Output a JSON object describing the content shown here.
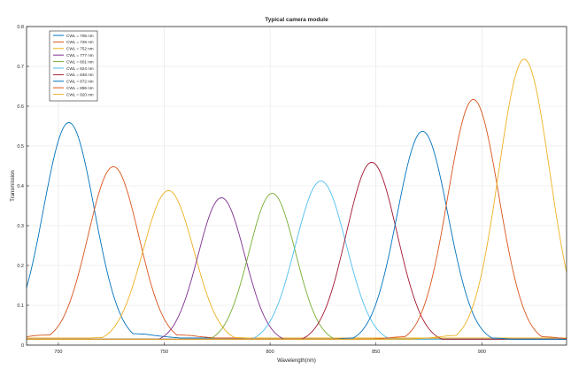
{
  "chart_data": {
    "type": "line",
    "title": "Typical camera module",
    "xlabel": "Wavelength(nm)",
    "ylabel": "Transmission",
    "xlim": [
      685,
      940
    ],
    "ylim": [
      0,
      0.8
    ],
    "xticks": [
      700,
      750,
      800,
      850,
      900
    ],
    "yticks": [
      0,
      0.1,
      0.2,
      0.3,
      0.4,
      0.5,
      0.6,
      0.7,
      0.8
    ],
    "grid": true,
    "legend_position": "top-left",
    "series": [
      {
        "name": "CWL = 705 nm",
        "color": "#0072BD",
        "cwl": 705,
        "peak": 0.553,
        "width": 12,
        "baseline": 0.012,
        "wing": 0.07
      },
      {
        "name": "CWL = 726 nm",
        "color": "#D95319",
        "cwl": 726,
        "peak": 0.442,
        "width": 12,
        "baseline": 0.012,
        "wing": 0.06
      },
      {
        "name": "CWL = 752 nm",
        "color": "#EDB120",
        "cwl": 752,
        "peak": 0.382,
        "width": 12,
        "baseline": 0.012,
        "wing": 0.04
      },
      {
        "name": "CWL = 777 nm",
        "color": "#7E2F8E",
        "cwl": 777,
        "peak": 0.365,
        "width": 11,
        "baseline": 0.01,
        "wing": 0.01
      },
      {
        "name": "CWL = 801 nm",
        "color": "#77AC30",
        "cwl": 801,
        "peak": 0.376,
        "width": 11,
        "baseline": 0.01,
        "wing": 0.01
      },
      {
        "name": "CWL = 824 nm",
        "color": "#4DBEEE",
        "cwl": 824,
        "peak": 0.407,
        "width": 12,
        "baseline": 0.01,
        "wing": 0.02
      },
      {
        "name": "CWL = 848 nm",
        "color": "#A2142F",
        "cwl": 848,
        "peak": 0.454,
        "width": 12,
        "baseline": 0.01,
        "wing": 0.02
      },
      {
        "name": "CWL = 872 nm",
        "color": "#0072BD",
        "cwl": 872,
        "peak": 0.532,
        "width": 12,
        "baseline": 0.01,
        "wing": 0.04
      },
      {
        "name": "CWL = 896 nm",
        "color": "#D95319",
        "cwl": 896,
        "peak": 0.612,
        "width": 12,
        "baseline": 0.01,
        "wing": 0.05
      },
      {
        "name": "CWL = 920 nm",
        "color": "#EDB120",
        "cwl": 920,
        "peak": 0.713,
        "width": 12,
        "baseline": 0.01,
        "wing": 0.06
      }
    ]
  }
}
